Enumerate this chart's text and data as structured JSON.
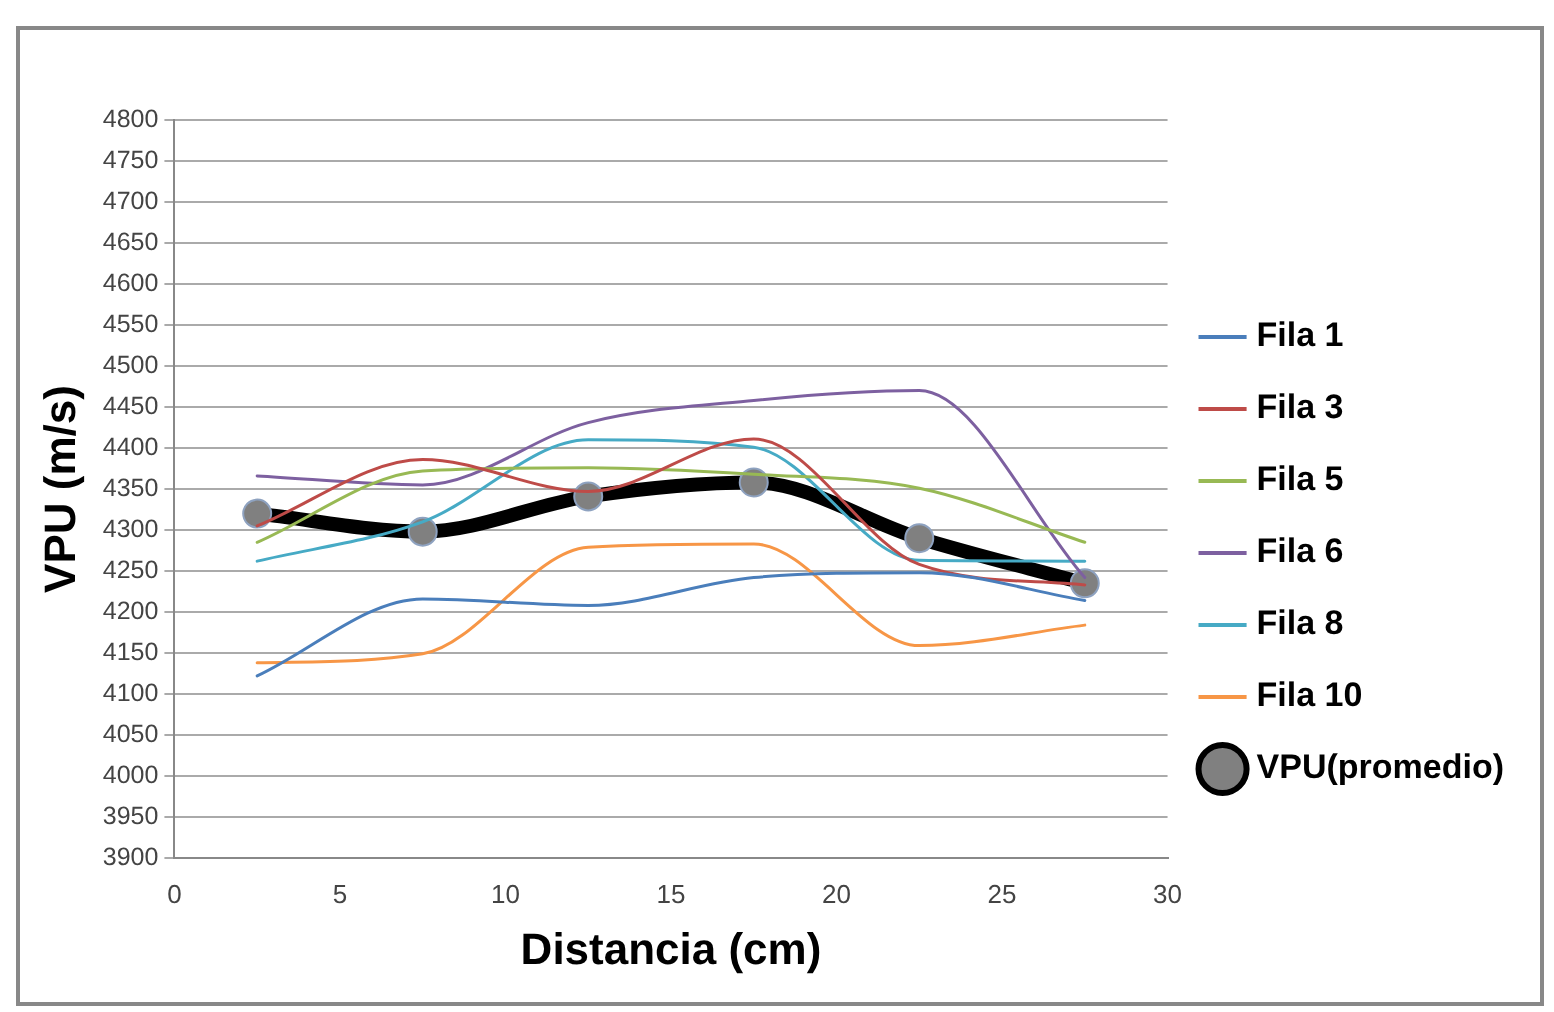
{
  "chart_data": {
    "type": "line",
    "xlabel": "Distancia (cm)",
    "ylabel": "VPU (m/s)",
    "x": [
      2.5,
      7.5,
      12.5,
      17.5,
      22.5,
      27.5
    ],
    "xlim": [
      0,
      30
    ],
    "xticks": [
      0,
      5,
      10,
      15,
      20,
      25,
      30
    ],
    "ylim": [
      3900,
      4800
    ],
    "yticks": [
      3900,
      3950,
      4000,
      4050,
      4100,
      4150,
      4200,
      4250,
      4300,
      4350,
      4400,
      4450,
      4500,
      4550,
      4600,
      4650,
      4700,
      4750,
      4800
    ],
    "grid": "y",
    "legend": "right",
    "line_style": "solid",
    "marker": "none",
    "series": [
      {
        "name": "Fila 1",
        "color": "#4a7ebb",
        "values": [
          4122,
          4216,
          4208,
          4242,
          4248,
          4214
        ]
      },
      {
        "name": "Fila 3",
        "color": "#be4b48",
        "values": [
          4305,
          4386,
          4347,
          4411,
          4258,
          4233
        ]
      },
      {
        "name": "Fila 5",
        "color": "#98b954",
        "values": [
          4285,
          4372,
          4376,
          4368,
          4351,
          4285
        ]
      },
      {
        "name": "Fila 6",
        "color": "#7d60a0",
        "values": [
          4366,
          4355,
          4431,
          4458,
          4470,
          4242
        ]
      },
      {
        "name": "Fila 8",
        "color": "#46aac5",
        "values": [
          4262,
          4310,
          4410,
          4401,
          4263,
          4262
        ]
      },
      {
        "name": "Fila 10",
        "color": "#f79646",
        "values": [
          4138,
          4149,
          4279,
          4283,
          4159,
          4184
        ]
      },
      {
        "name": "VPU(promedio)",
        "color": "#000000",
        "marker": "circle",
        "values": [
          4320,
          4298,
          4341,
          4358,
          4290,
          4235
        ]
      }
    ]
  }
}
